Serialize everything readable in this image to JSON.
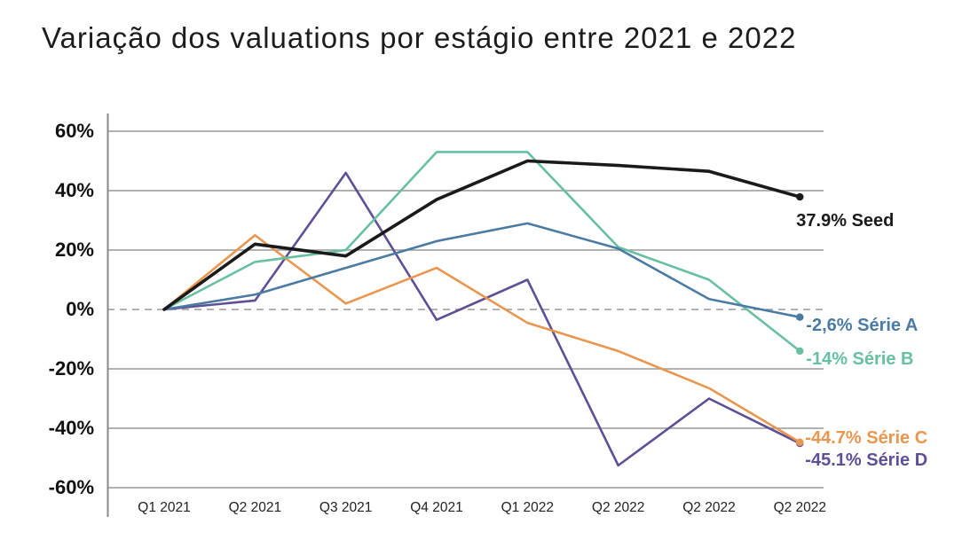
{
  "title": "Variação dos valuations por estágio entre 2021 e 2022",
  "chart_data": {
    "type": "line",
    "categories": [
      "Q1 2021",
      "Q2 2021",
      "Q3 2021",
      "Q4 2021",
      "Q1 2022",
      "Q2 2022",
      "Q2 2022",
      "Q2 2022"
    ],
    "y_ticks": [
      "60%",
      "40%",
      "20%",
      "0%",
      "-20%",
      "-40%",
      "-60%"
    ],
    "y_tick_values": [
      60,
      40,
      20,
      0,
      -20,
      -40,
      -60
    ],
    "ylim": [
      -65,
      65
    ],
    "grid": "horizontal",
    "zero_line_dashed": true,
    "legend_position": "right-end-labels",
    "gridline_color": "#999999",
    "axis_color": "#8a8a8a",
    "series": [
      {
        "name": "Seed",
        "color": "#1a1a1a",
        "values": [
          0,
          22,
          18,
          37,
          50,
          48.5,
          46.5,
          37.9
        ],
        "end_label": "37.9% Seed",
        "label_dx": -4,
        "label_dy": 15
      },
      {
        "name": "Série A",
        "color": "#4b7ba3",
        "values": [
          0,
          5,
          14,
          23,
          29,
          20.5,
          3.5,
          -2.6
        ],
        "end_label": "-2,6% Série A",
        "label_dx": 7,
        "label_dy": -3
      },
      {
        "name": "Série B",
        "color": "#68c0a0",
        "values": [
          0,
          16,
          20,
          53,
          53,
          21,
          10,
          -14
        ],
        "end_label": "-14% Série B",
        "label_dx": 7,
        "label_dy": -3
      },
      {
        "name": "Série C",
        "color": "#e9964f",
        "values": [
          0,
          25,
          2,
          14,
          -4.5,
          -14,
          -26.5,
          -44.7
        ],
        "end_label": "-44.7% Série C",
        "label_dx": 6,
        "label_dy": -17
      },
      {
        "name": "Série D",
        "color": "#5f5095",
        "values": [
          0,
          3,
          46,
          -3.5,
          10,
          -52.5,
          -30,
          -45.1
        ],
        "end_label": "-45.1% Série D",
        "label_dx": 6,
        "label_dy": 7
      }
    ]
  }
}
